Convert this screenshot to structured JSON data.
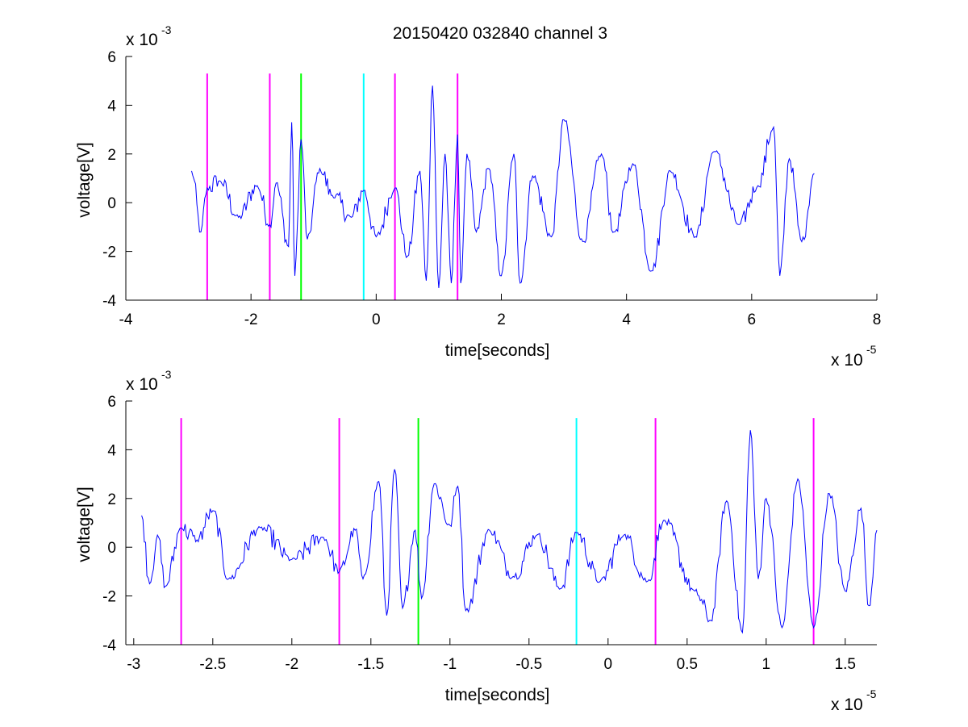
{
  "title": "20150420 032840 channel 3",
  "chart_data": [
    {
      "type": "line",
      "title": "20150420 032840 channel 3",
      "xlabel": "time[seconds]",
      "ylabel": "voltage[V]",
      "x_exponent_label": "x 10",
      "x_exponent": "-5",
      "y_exponent_label": "x 10",
      "y_exponent": "-3",
      "xlim": [
        -4e-05,
        8e-05
      ],
      "ylim": [
        -0.004,
        0.006
      ],
      "xticks": [
        -4e-05,
        -2e-05,
        0,
        2e-05,
        4e-05,
        6e-05,
        8e-05
      ],
      "xtick_labels": [
        "-4",
        "-2",
        "0",
        "2",
        "4",
        "6",
        "8"
      ],
      "yticks": [
        -0.004,
        -0.002,
        0,
        0.002,
        0.004,
        0.006
      ],
      "ytick_labels": [
        "-4",
        "-2",
        "0",
        "2",
        "4",
        "6"
      ],
      "grid": false,
      "series": [
        {
          "color": "#0000ff",
          "x_range": [
            -2.95e-05,
            7e-05
          ],
          "peaks": [
            [
              -2.95e-05,
              0.0013
            ],
            [
              -2.8e-05,
              -0.0012
            ],
            [
              -2.7e-05,
              0.0006
            ],
            [
              -2.5e-05,
              0.0009
            ],
            [
              -2.2e-05,
              -0.0006
            ],
            [
              -1.9e-05,
              0.0007
            ],
            [
              -1.7e-05,
              -0.0009
            ],
            [
              -1.6e-05,
              0.0008
            ],
            [
              -1.4e-05,
              -0.0018
            ],
            [
              -1.35e-05,
              0.0033
            ],
            [
              -1.3e-05,
              -0.003
            ],
            [
              -1.2e-05,
              0.0026
            ],
            [
              -1.1e-05,
              -0.0015
            ],
            [
              -9e-06,
              0.0014
            ],
            [
              -7e-06,
              0.0003
            ],
            [
              -4e-06,
              -0.0006
            ],
            [
              -2e-06,
              0.0005
            ],
            [
              0.0,
              -0.0014
            ],
            [
              3e-06,
              0.0006
            ],
            [
              5e-06,
              -0.0022
            ],
            [
              7e-06,
              0.0013
            ],
            [
              8e-06,
              -0.0032
            ],
            [
              9e-06,
              0.0048
            ],
            [
              1e-05,
              -0.0035
            ],
            [
              1.1e-05,
              0.002
            ],
            [
              1.2e-05,
              -0.0033
            ],
            [
              1.3e-05,
              0.0028
            ],
            [
              1.35e-05,
              -0.0033
            ],
            [
              1.45e-05,
              0.002
            ],
            [
              1.6e-05,
              -0.0012
            ],
            [
              1.8e-05,
              0.0014
            ],
            [
              2e-05,
              -0.003
            ],
            [
              2.2e-05,
              0.002
            ],
            [
              2.3e-05,
              -0.0033
            ],
            [
              2.5e-05,
              0.0011
            ],
            [
              2.8e-05,
              -0.0014
            ],
            [
              3e-05,
              0.0034
            ],
            [
              3.3e-05,
              -0.0016
            ],
            [
              3.6e-05,
              0.002
            ],
            [
              3.8e-05,
              -0.0012
            ],
            [
              4.1e-05,
              0.0016
            ],
            [
              4.4e-05,
              -0.0028
            ],
            [
              4.7e-05,
              0.0013
            ],
            [
              5.1e-05,
              -0.0014
            ],
            [
              5.4e-05,
              0.0021
            ],
            [
              5.8e-05,
              -0.0009
            ],
            [
              6.1e-05,
              0.0007
            ],
            [
              6.35e-05,
              0.0031
            ],
            [
              6.45e-05,
              -0.003
            ],
            [
              6.6e-05,
              0.0018
            ],
            [
              6.8e-05,
              -0.0016
            ],
            [
              7e-05,
              0.0012
            ]
          ]
        }
      ],
      "markers": [
        {
          "x": -2.7e-05,
          "color": "#ff00ff"
        },
        {
          "x": -1.7e-05,
          "color": "#ff00ff"
        },
        {
          "x": -1.2e-05,
          "color": "#00ff00"
        },
        {
          "x": -2e-06,
          "color": "#00ffff"
        },
        {
          "x": 3e-06,
          "color": "#ff00ff"
        },
        {
          "x": 1.3e-05,
          "color": "#ff00ff"
        }
      ],
      "marker_top": 0.0053
    },
    {
      "type": "line",
      "title": "",
      "xlabel": "time[seconds]",
      "ylabel": "voltage[V]",
      "x_exponent_label": "x 10",
      "x_exponent": "-5",
      "y_exponent_label": "x 10",
      "y_exponent": "-3",
      "xlim": [
        -3.05e-05,
        1.7e-05
      ],
      "ylim": [
        -0.004,
        0.006
      ],
      "xticks": [
        -3e-05,
        -2.5e-05,
        -2e-05,
        -1.5e-05,
        -1e-05,
        -5e-06,
        0,
        5e-06,
        1e-05,
        1.5e-05
      ],
      "xtick_labels": [
        "-3",
        "-2.5",
        "-2",
        "-1.5",
        "-1",
        "-0.5",
        "0",
        "0.5",
        "1",
        "1.5"
      ],
      "yticks": [
        -0.004,
        -0.002,
        0,
        0.002,
        0.004,
        0.006
      ],
      "ytick_labels": [
        "-4",
        "-2",
        "0",
        "2",
        "4",
        "6"
      ],
      "grid": false,
      "series": [
        {
          "color": "#0000ff",
          "x_range": [
            -2.95e-05,
            1.7e-05
          ],
          "peaks": [
            [
              -2.95e-05,
              0.0013
            ],
            [
              -2.9e-05,
              -0.0015
            ],
            [
              -2.85e-05,
              0.0005
            ],
            [
              -2.8e-05,
              -0.0016
            ],
            [
              -2.7e-05,
              0.0008
            ],
            [
              -2.6e-05,
              0.0003
            ],
            [
              -2.5e-05,
              0.0015
            ],
            [
              -2.4e-05,
              -0.0013
            ],
            [
              -2.2e-05,
              0.0008
            ],
            [
              -2e-05,
              -0.0005
            ],
            [
              -1.8e-05,
              0.0004
            ],
            [
              -1.7e-05,
              -0.001
            ],
            [
              -1.6e-05,
              0.0007
            ],
            [
              -1.55e-05,
              -0.0013
            ],
            [
              -1.45e-05,
              0.0027
            ],
            [
              -1.4e-05,
              -0.0028
            ],
            [
              -1.35e-05,
              0.0032
            ],
            [
              -1.3e-05,
              -0.0025
            ],
            [
              -1.22e-05,
              0.0007
            ],
            [
              -1.18e-05,
              -0.0021
            ],
            [
              -1.1e-05,
              0.0026
            ],
            [
              -1e-05,
              0.0009
            ],
            [
              -9.5e-06,
              0.0025
            ],
            [
              -9e-06,
              -0.0026
            ],
            [
              -7.5e-06,
              0.0007
            ],
            [
              -6e-06,
              -0.0012
            ],
            [
              -4.5e-06,
              0.0005
            ],
            [
              -3e-06,
              -0.0017
            ],
            [
              -2e-06,
              0.0006
            ],
            [
              -5e-07,
              -0.0014
            ],
            [
              1e-06,
              0.0005
            ],
            [
              2.5e-06,
              -0.0014
            ],
            [
              3.5e-06,
              0.0011
            ],
            [
              5.5e-06,
              -0.0018
            ],
            [
              6.5e-06,
              -0.003
            ],
            [
              7.5e-06,
              0.0019
            ],
            [
              8.5e-06,
              -0.0035
            ],
            [
              9e-06,
              0.0048
            ],
            [
              9.5e-06,
              -0.0013
            ],
            [
              1e-05,
              0.002
            ],
            [
              1.1e-05,
              -0.0033
            ],
            [
              1.2e-05,
              0.0028
            ],
            [
              1.3e-05,
              -0.0033
            ],
            [
              1.4e-05,
              0.0022
            ],
            [
              1.5e-05,
              -0.0018
            ],
            [
              1.6e-05,
              0.0016
            ],
            [
              1.65e-05,
              -0.0024
            ],
            [
              1.7e-05,
              0.0007
            ]
          ]
        }
      ],
      "markers": [
        {
          "x": -2.7e-05,
          "color": "#ff00ff"
        },
        {
          "x": -1.7e-05,
          "color": "#ff00ff"
        },
        {
          "x": -1.2e-05,
          "color": "#00ff00"
        },
        {
          "x": -2e-06,
          "color": "#00ffff"
        },
        {
          "x": 3e-06,
          "color": "#ff00ff"
        },
        {
          "x": 1.3e-05,
          "color": "#ff00ff"
        }
      ],
      "marker_top": 0.0053
    }
  ]
}
